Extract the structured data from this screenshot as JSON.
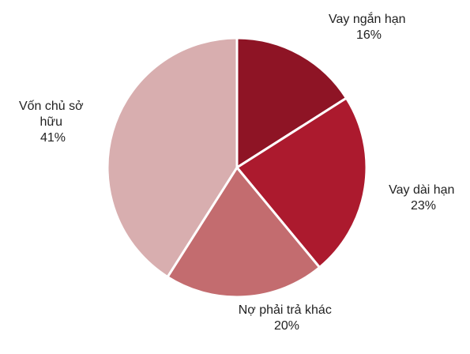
{
  "chart_data": {
    "type": "pie",
    "series": [
      {
        "values": [
          16,
          23,
          20,
          41
        ],
        "value_unit": "%",
        "categories": [
          "Vay ngắn hạn",
          "Vay dài hạn",
          "Nợ phải trả khác",
          "Vốn chủ sở hữu"
        ]
      }
    ],
    "categories": [
      "Vay ngắn hạn",
      "Vay dài hạn",
      "Nợ phải trả khác",
      "Vốn chủ sở hữu"
    ],
    "values": [
      16,
      23,
      20,
      41
    ],
    "data_labels": [
      [
        "Vay ngắn hạn",
        "16%"
      ],
      [
        "Vay dài hạn",
        "23%"
      ],
      [
        "Nợ phải trả khác",
        "20%"
      ],
      [
        "Vốn chủ sở",
        "hữu",
        "41%"
      ]
    ],
    "colors": [
      "#8e1425",
      "#ac1a2e",
      "#c36c6f",
      "#d8aeaf"
    ],
    "slice_border_color": "#ffffff",
    "start_angle": "12 o'clock",
    "direction": "clockwise",
    "legend": "none",
    "title": ""
  }
}
